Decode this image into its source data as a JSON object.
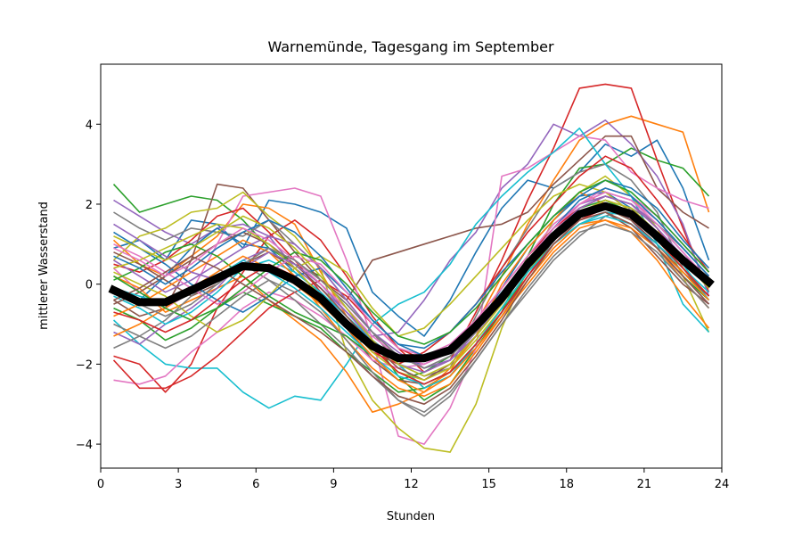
{
  "chart_data": {
    "type": "line",
    "title": "Warnemünde, Tagesgang im September",
    "xlabel": "Stunden",
    "ylabel": "mittlerer Wasserstand",
    "xlim": [
      0,
      24
    ],
    "ylim": [
      -4.6,
      5.5
    ],
    "xticks": [
      0,
      3,
      6,
      9,
      12,
      15,
      18,
      21,
      24
    ],
    "yticks": [
      -4,
      -2,
      0,
      2,
      4
    ],
    "grid": false,
    "legend": "none",
    "x": [
      0.5,
      1.5,
      2.5,
      3.5,
      4.5,
      5.5,
      6.5,
      7.5,
      8.5,
      9.5,
      10.5,
      11.5,
      12.5,
      13.5,
      14.5,
      15.5,
      16.5,
      17.5,
      18.5,
      19.5,
      20.5,
      21.5,
      22.5,
      23.5
    ],
    "mean": {
      "color": "#000000",
      "values": [
        -0.15,
        -0.45,
        -0.45,
        -0.15,
        0.15,
        0.45,
        0.4,
        0.1,
        -0.35,
        -1.0,
        -1.55,
        -1.85,
        -1.85,
        -1.65,
        -1.05,
        -0.35,
        0.5,
        1.2,
        1.75,
        1.95,
        1.75,
        1.2,
        0.6,
        0.05
      ]
    },
    "series_colors": [
      "#1f77b4",
      "#ff7f0e",
      "#2ca02c",
      "#d62728",
      "#9467bd",
      "#8c564b",
      "#e377c2",
      "#7f7f7f",
      "#bcbd22",
      "#17becf"
    ],
    "series": [
      {
        "values": [
          0.9,
          1.1,
          0.6,
          1.6,
          1.5,
          0.9,
          2.1,
          2.0,
          1.8,
          1.4,
          -0.2,
          -0.8,
          -1.3,
          -0.4,
          0.8,
          1.9,
          2.6,
          2.4,
          2.8,
          3.5,
          3.2,
          3.6,
          2.4,
          0.6
        ]
      },
      {
        "values": [
          1.1,
          0.5,
          0.2,
          0.7,
          1.2,
          2.0,
          1.9,
          1.5,
          0.3,
          -0.8,
          -1.5,
          -2.0,
          -2.6,
          -2.2,
          -1.0,
          0.2,
          1.5,
          2.6,
          3.6,
          4.0,
          4.2,
          4.0,
          3.8,
          1.8
        ]
      },
      {
        "values": [
          2.5,
          1.8,
          2.0,
          2.2,
          2.1,
          1.6,
          0.9,
          0.5,
          0.2,
          -0.6,
          -1.4,
          -2.3,
          -2.9,
          -2.5,
          -1.6,
          -0.7,
          0.7,
          2.0,
          2.9,
          3.0,
          3.4,
          3.1,
          2.9,
          2.2
        ]
      },
      {
        "values": [
          -1.8,
          -2.0,
          -2.7,
          -2.0,
          -0.6,
          0.3,
          1.2,
          1.6,
          1.1,
          0.2,
          -0.8,
          -1.6,
          -2.2,
          -1.9,
          -0.7,
          0.6,
          2.1,
          3.4,
          4.9,
          5.0,
          4.9,
          3.1,
          1.4,
          -0.2
        ]
      },
      {
        "values": [
          2.1,
          1.7,
          1.3,
          1.0,
          1.4,
          1.5,
          1.2,
          0.4,
          -0.1,
          -0.7,
          -1.3,
          -1.2,
          -0.4,
          0.6,
          1.3,
          2.4,
          3.0,
          4.0,
          3.7,
          4.1,
          3.5,
          2.7,
          1.5,
          -0.3
        ]
      },
      {
        "values": [
          -0.4,
          -0.8,
          -0.6,
          0.6,
          2.5,
          2.4,
          1.6,
          0.8,
          0.1,
          -0.4,
          0.6,
          0.8,
          1.0,
          1.2,
          1.4,
          1.5,
          1.8,
          2.5,
          3.1,
          3.7,
          3.7,
          2.4,
          1.8,
          1.4
        ]
      },
      {
        "values": [
          0.4,
          -0.2,
          -0.6,
          -0.2,
          1.0,
          2.2,
          2.3,
          2.4,
          2.2,
          0.6,
          -1.4,
          -3.8,
          -4.0,
          -3.1,
          -1.6,
          2.7,
          2.9,
          3.3,
          3.7,
          3.6,
          2.8,
          2.4,
          2.1,
          1.9
        ]
      },
      {
        "values": [
          1.8,
          1.4,
          1.1,
          1.4,
          1.3,
          1.2,
          1.6,
          1.0,
          0.4,
          -0.4,
          -1.2,
          -2.0,
          -2.3,
          -2.1,
          -0.8,
          0.4,
          1.4,
          2.4,
          2.8,
          3.0,
          2.6,
          1.8,
          0.4,
          -0.4
        ]
      },
      {
        "values": [
          0.6,
          1.2,
          1.4,
          1.8,
          1.9,
          2.3,
          1.7,
          1.2,
          0.4,
          -1.7,
          -2.9,
          -3.6,
          -4.1,
          -4.2,
          -3.0,
          -1.1,
          0.4,
          1.6,
          2.3,
          2.7,
          2.2,
          1.4,
          0.2,
          -1.2
        ]
      },
      {
        "values": [
          -0.9,
          -1.5,
          -2.0,
          -2.1,
          -2.1,
          -2.7,
          -3.1,
          -2.8,
          -2.9,
          -2.0,
          -1.0,
          -0.5,
          -0.2,
          0.5,
          1.5,
          2.2,
          2.8,
          3.3,
          3.9,
          3.0,
          2.2,
          1.0,
          -0.5,
          -1.2
        ]
      },
      {
        "values": [
          -0.2,
          -0.4,
          0.2,
          0.9,
          1.4,
          1.0,
          0.9,
          0.3,
          -0.2,
          -0.9,
          -1.4,
          -1.9,
          -2.0,
          -1.7,
          -1.1,
          -0.1,
          0.9,
          1.6,
          2.2,
          2.3,
          1.9,
          1.2,
          0.6,
          0.1
        ]
      },
      {
        "values": [
          0.2,
          -0.1,
          -0.7,
          -0.4,
          -0.1,
          0.2,
          -0.4,
          -0.9,
          -1.4,
          -2.2,
          -3.2,
          -3.0,
          -2.7,
          -2.1,
          -1.3,
          0.0,
          0.9,
          1.6,
          2.3,
          2.0,
          1.6,
          0.9,
          0.1,
          -0.6
        ]
      },
      {
        "values": [
          -0.6,
          -0.9,
          -1.4,
          -1.1,
          -0.6,
          -0.2,
          -0.5,
          -0.8,
          -1.1,
          -1.7,
          -2.2,
          -2.7,
          -2.6,
          -2.3,
          -1.5,
          -0.7,
          0.3,
          1.1,
          1.7,
          1.9,
          1.6,
          0.9,
          0.2,
          -0.4
        ]
      },
      {
        "values": [
          0.5,
          0.3,
          0.6,
          1.1,
          1.7,
          1.9,
          1.3,
          0.6,
          -0.2,
          -1.0,
          -1.7,
          -2.0,
          -1.7,
          -1.2,
          -0.5,
          0.4,
          1.3,
          2.0,
          2.7,
          3.2,
          2.9,
          2.1,
          1.2,
          0.3
        ]
      },
      {
        "values": [
          -1.2,
          -1.5,
          -1.0,
          -0.6,
          -0.1,
          0.6,
          0.9,
          0.6,
          0.1,
          -0.5,
          -1.2,
          -1.7,
          -2.1,
          -1.9,
          -1.3,
          -0.4,
          0.6,
          1.4,
          2.0,
          2.2,
          2.0,
          1.5,
          0.8,
          0.0
        ]
      },
      {
        "values": [
          0.8,
          0.5,
          0.1,
          -0.3,
          0.0,
          0.5,
          0.8,
          0.4,
          -0.3,
          -1.1,
          -1.9,
          -2.4,
          -2.5,
          -2.2,
          -1.6,
          -0.8,
          0.2,
          1.1,
          1.6,
          1.8,
          1.4,
          0.7,
          0.0,
          -0.5
        ]
      },
      {
        "values": [
          -2.4,
          -2.5,
          -2.3,
          -1.7,
          -1.2,
          -0.6,
          -0.2,
          -0.4,
          -0.8,
          -1.3,
          -1.9,
          -2.1,
          -2.0,
          -1.7,
          -1.1,
          -0.3,
          0.5,
          1.3,
          2.0,
          2.3,
          2.1,
          1.6,
          0.9,
          0.2
        ]
      },
      {
        "values": [
          -1.6,
          -1.3,
          -0.9,
          -0.3,
          0.2,
          0.5,
          0.1,
          -0.4,
          -1.0,
          -1.6,
          -2.3,
          -2.9,
          -3.3,
          -2.8,
          -1.9,
          -1.0,
          -0.2,
          0.6,
          1.2,
          1.7,
          1.9,
          1.5,
          0.9,
          0.2
        ]
      },
      {
        "values": [
          0.3,
          0.0,
          -0.3,
          -0.8,
          -1.2,
          -0.9,
          -0.3,
          0.4,
          0.7,
          0.3,
          -0.6,
          -1.3,
          -1.1,
          -0.5,
          0.2,
          0.9,
          1.6,
          2.2,
          2.5,
          2.3,
          1.8,
          1.1,
          0.4,
          -0.3
        ]
      },
      {
        "values": [
          -0.3,
          -0.6,
          -1.0,
          -0.7,
          -0.2,
          0.4,
          0.6,
          0.3,
          -0.2,
          -0.8,
          -1.4,
          -2.0,
          -2.6,
          -2.3,
          -1.5,
          -0.6,
          0.3,
          1.0,
          1.5,
          1.8,
          1.7,
          1.2,
          0.5,
          -0.4
        ]
      },
      {
        "values": [
          1.3,
          0.9,
          0.5,
          0.0,
          -0.4,
          -0.7,
          -0.3,
          0.2,
          0.4,
          -0.2,
          -0.9,
          -1.5,
          -1.6,
          -1.2,
          -0.5,
          0.3,
          1.0,
          1.7,
          2.2,
          2.6,
          2.4,
          1.9,
          1.1,
          0.4
        ]
      },
      {
        "values": [
          -0.8,
          -0.5,
          -0.1,
          0.3,
          0.7,
          1.1,
          0.8,
          0.2,
          -0.6,
          -1.4,
          -2.1,
          -2.6,
          -2.8,
          -2.5,
          -1.7,
          -0.8,
          0.1,
          0.9,
          1.5,
          1.6,
          1.3,
          0.6,
          -0.3,
          -1.1
        ]
      },
      {
        "values": [
          0.1,
          0.4,
          0.8,
          1.0,
          0.7,
          0.2,
          -0.3,
          -0.7,
          -1.0,
          -1.3,
          -1.8,
          -2.4,
          -2.2,
          -1.8,
          -1.2,
          -0.4,
          0.5,
          1.3,
          1.9,
          2.1,
          1.8,
          1.3,
          0.7,
          0.1
        ]
      },
      {
        "values": [
          -1.9,
          -2.6,
          -2.6,
          -2.3,
          -1.8,
          -1.2,
          -0.6,
          -0.2,
          0.1,
          -0.3,
          -1.0,
          -1.6,
          -1.9,
          -1.6,
          -0.9,
          -0.1,
          0.7,
          1.4,
          1.9,
          2.2,
          2.0,
          1.4,
          0.6,
          -0.1
        ]
      },
      {
        "values": [
          0.6,
          0.2,
          -0.2,
          0.1,
          0.5,
          0.9,
          1.2,
          1.0,
          0.4,
          -0.4,
          -1.2,
          -1.8,
          -2.1,
          -1.9,
          -1.2,
          -0.4,
          0.4,
          1.2,
          1.8,
          2.0,
          1.6,
          0.9,
          0.2,
          -0.5
        ]
      },
      {
        "values": [
          -0.5,
          -0.2,
          0.2,
          0.6,
          1.0,
          1.3,
          1.0,
          0.5,
          -0.1,
          -0.8,
          -1.5,
          -2.1,
          -2.4,
          -2.0,
          -1.3,
          -0.5,
          0.4,
          1.2,
          1.7,
          1.9,
          1.6,
          1.0,
          0.3,
          -0.3
        ]
      },
      {
        "values": [
          1.0,
          0.7,
          0.3,
          -0.1,
          -0.5,
          -0.2,
          0.3,
          0.7,
          0.5,
          -0.2,
          -1.0,
          -1.6,
          -1.8,
          -1.5,
          -0.9,
          -0.1,
          0.7,
          1.5,
          2.0,
          2.4,
          2.2,
          1.7,
          1.0,
          0.3
        ]
      },
      {
        "values": [
          -1.0,
          -1.3,
          -1.6,
          -1.3,
          -0.8,
          -0.3,
          0.1,
          -0.2,
          -0.7,
          -1.4,
          -2.2,
          -2.9,
          -3.2,
          -2.7,
          -1.9,
          -1.0,
          -0.1,
          0.7,
          1.3,
          1.5,
          1.3,
          0.8,
          0.1,
          -0.6
        ]
      },
      {
        "values": [
          0.4,
          0.6,
          0.9,
          1.2,
          1.5,
          1.4,
          1.0,
          0.4,
          -0.3,
          -1.0,
          -1.7,
          -2.2,
          -2.4,
          -2.1,
          -1.4,
          -0.6,
          0.3,
          1.1,
          1.7,
          2.0,
          1.8,
          1.3,
          0.6,
          -0.1
        ]
      },
      {
        "values": [
          -0.1,
          -0.3,
          -0.5,
          -0.2,
          0.2,
          0.6,
          0.3,
          -0.1,
          -0.6,
          -1.2,
          -1.8,
          -2.3,
          -2.5,
          -2.2,
          -1.5,
          -0.6,
          0.3,
          1.0,
          1.5,
          1.7,
          1.5,
          1.0,
          0.4,
          -0.2
        ]
      },
      {
        "values": [
          0.7,
          0.4,
          0.0,
          0.4,
          0.9,
          1.3,
          1.6,
          1.3,
          0.7,
          -0.1,
          -0.9,
          -1.5,
          -1.8,
          -1.6,
          -1.0,
          -0.2,
          0.6,
          1.4,
          2.1,
          2.4,
          2.2,
          1.6,
          0.9,
          0.2
        ]
      },
      {
        "values": [
          -1.3,
          -1.0,
          -0.6,
          -0.1,
          0.3,
          0.7,
          0.4,
          0.0,
          -0.5,
          -1.1,
          -1.8,
          -2.4,
          -2.7,
          -2.3,
          -1.6,
          -0.8,
          0.0,
          0.8,
          1.4,
          1.6,
          1.4,
          0.9,
          0.3,
          -0.4
        ]
      },
      {
        "values": [
          0.2,
          -0.2,
          -0.6,
          -0.9,
          -0.6,
          -0.1,
          0.4,
          0.8,
          0.6,
          0.0,
          -0.7,
          -1.3,
          -1.5,
          -1.2,
          -0.6,
          0.2,
          1.0,
          1.7,
          2.3,
          2.6,
          2.3,
          1.7,
          1.0,
          0.3
        ]
      },
      {
        "values": [
          -0.7,
          -0.9,
          -1.2,
          -0.9,
          -0.4,
          0.1,
          0.5,
          0.2,
          -0.3,
          -0.9,
          -1.6,
          -2.2,
          -2.5,
          -2.2,
          -1.5,
          -0.7,
          0.2,
          1.0,
          1.6,
          1.9,
          1.7,
          1.1,
          0.4,
          -0.3
        ]
      },
      {
        "values": [
          1.5,
          1.1,
          0.7,
          0.3,
          0.1,
          0.4,
          0.8,
          0.5,
          0.0,
          -0.7,
          -1.4,
          -2.0,
          -2.2,
          -1.9,
          -1.2,
          -0.4,
          0.5,
          1.3,
          1.9,
          2.2,
          2.0,
          1.4,
          0.7,
          0.0
        ]
      },
      {
        "values": [
          -0.4,
          -0.1,
          0.3,
          0.7,
          0.4,
          0.0,
          -0.4,
          -0.8,
          -1.2,
          -1.7,
          -2.3,
          -2.8,
          -3.0,
          -2.6,
          -1.8,
          -0.9,
          0.1,
          1.0,
          1.6,
          1.8,
          1.5,
          0.9,
          0.2,
          -0.5
        ]
      },
      {
        "values": [
          0.9,
          0.6,
          0.2,
          0.5,
          1.0,
          1.4,
          1.1,
          0.6,
          0.0,
          -0.6,
          -1.3,
          -1.8,
          -2.0,
          -1.7,
          -1.1,
          -0.3,
          0.6,
          1.4,
          2.0,
          2.3,
          2.1,
          1.5,
          0.8,
          0.1
        ]
      },
      {
        "values": [
          -0.2,
          -0.5,
          -0.8,
          -0.5,
          0.0,
          0.5,
          0.9,
          0.6,
          0.1,
          -0.5,
          -1.2,
          -1.8,
          -2.1,
          -1.8,
          -1.2,
          -0.4,
          0.4,
          1.2,
          1.8,
          2.1,
          1.9,
          1.3,
          0.6,
          -0.1
        ]
      },
      {
        "values": [
          1.2,
          0.9,
          0.6,
          0.9,
          1.3,
          1.7,
          1.4,
          0.9,
          0.2,
          -0.6,
          -1.4,
          -2.0,
          -2.3,
          -2.0,
          -1.3,
          -0.5,
          0.4,
          1.2,
          1.8,
          2.1,
          1.9,
          1.3,
          0.6,
          -0.1
        ]
      }
    ]
  }
}
